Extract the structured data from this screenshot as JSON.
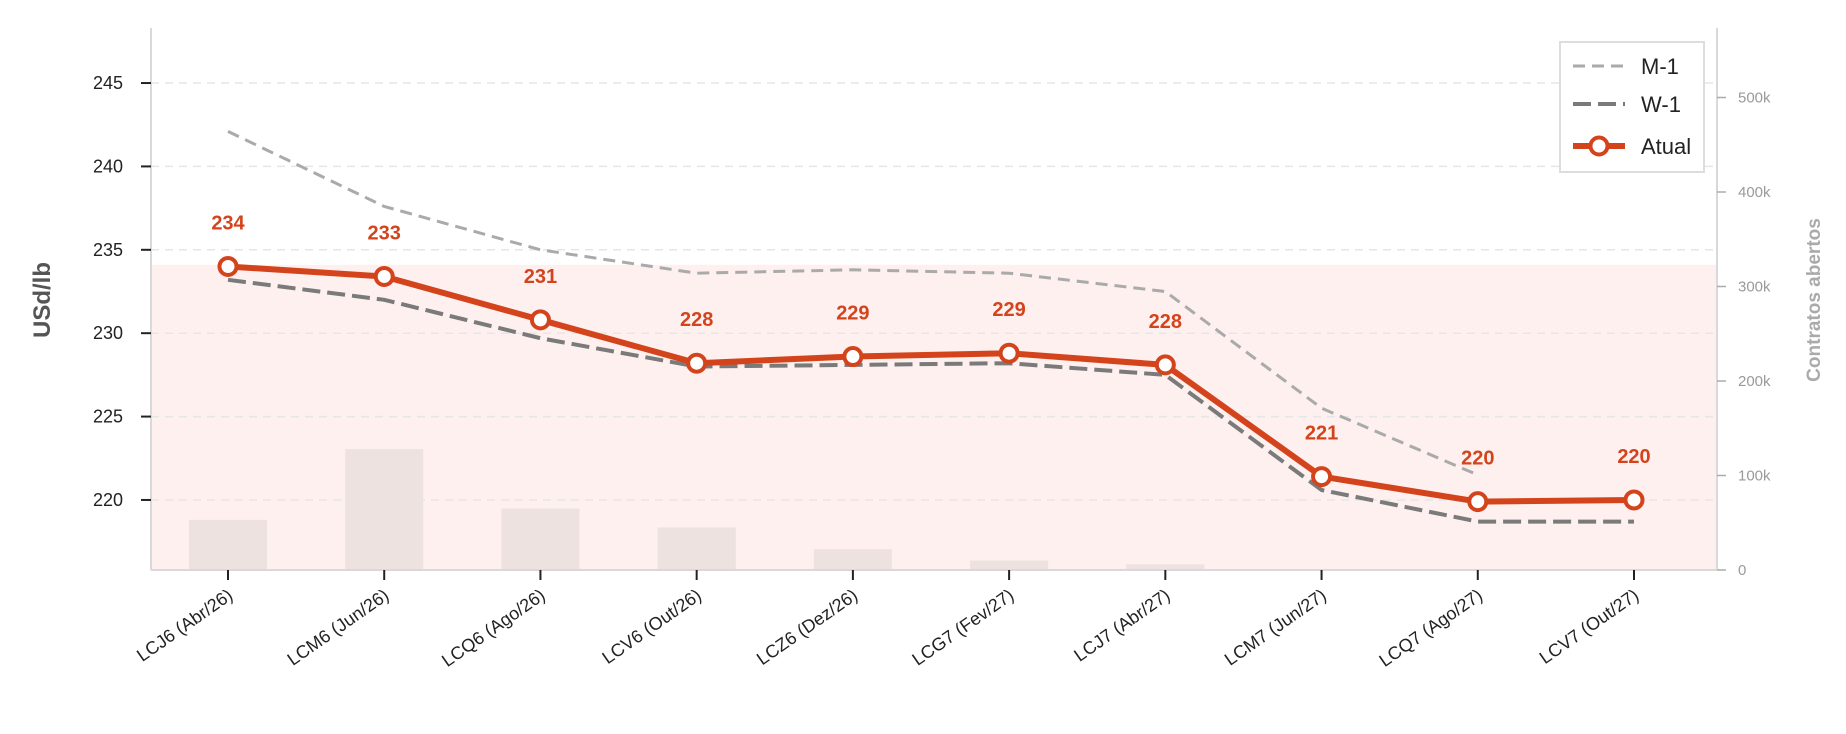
{
  "chart_data": {
    "type": "line",
    "xlabel": "",
    "ylabel": "USd/lb",
    "y2label": "Contratos abertos",
    "ylim": [
      215.8,
      248.3
    ],
    "yticks": [
      220,
      225,
      230,
      235,
      240,
      245
    ],
    "y2lim": [
      0,
      500000
    ],
    "y2ticks": [
      0,
      100000,
      200000,
      300000,
      400000,
      500000
    ],
    "y2tick_labels": [
      "0",
      "100k",
      "200k",
      "300k",
      "400k",
      "500k"
    ],
    "categories": [
      "LCJ6 (Abr/26)",
      "LCM6 (Jun/26)",
      "LCQ6 (Ago/26)",
      "LCV6 (Out/26)",
      "LCZ6 (Dez/26)",
      "LCG7 (Fev/27)",
      "LCJ7 (Abr/27)",
      "LCM7 (Jun/27)",
      "LCQ7 (Ago/27)",
      "LCV7 (Out/27)"
    ],
    "series": [
      {
        "name": "M-1",
        "values": [
          242.1,
          237.6,
          235.0,
          233.6,
          233.8,
          233.6,
          232.5,
          225.5,
          221.5,
          null
        ],
        "color": "#aaaaaa",
        "style": "dashed"
      },
      {
        "name": "W-1",
        "values": [
          233.2,
          232.0,
          229.7,
          228.0,
          228.1,
          228.2,
          227.5,
          220.6,
          218.7,
          218.7
        ],
        "color": "#7a7a7a",
        "style": "dashed"
      },
      {
        "name": "Atual",
        "values": [
          234.0,
          233.4,
          230.8,
          228.2,
          228.6,
          228.8,
          228.1,
          221.4,
          219.9,
          220.0
        ],
        "color": "#d4441c",
        "style": "solid-markers"
      }
    ],
    "data_labels": [
      "234",
      "233",
      "231",
      "228",
      "229",
      "229",
      "228",
      "221",
      "220",
      "220"
    ],
    "open_interest": [
      53000,
      128000,
      65000,
      45000,
      22000,
      10000,
      6000,
      0,
      0,
      0
    ],
    "bar_color": "#eee2e1",
    "shade_band": [
      220.0,
      234.1
    ],
    "shade_color": "#fdf0ee",
    "grid": "y-dashed",
    "legend_position": "top-right"
  }
}
